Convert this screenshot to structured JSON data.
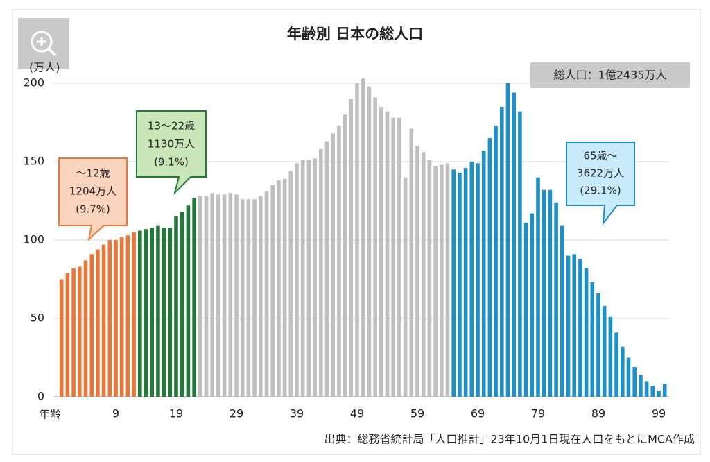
{
  "chart_data": {
    "type": "bar",
    "title": "年齢別 日本の総人口",
    "y_label": "(万人)",
    "x_label": "年齢",
    "total_label": "総人口：1億2435万人",
    "source": "出典：総務省統計局「人口推計」23年10月1日現在人口をもとにMCA作成",
    "categories": [
      null,
      null,
      null,
      null,
      null,
      null,
      null,
      null,
      null,
      "9",
      null,
      null,
      null,
      null,
      null,
      null,
      null,
      null,
      null,
      "19",
      null,
      null,
      null,
      null,
      null,
      null,
      null,
      null,
      null,
      "29",
      null,
      null,
      null,
      null,
      null,
      null,
      null,
      null,
      null,
      "39",
      null,
      null,
      null,
      null,
      null,
      null,
      null,
      null,
      null,
      "49",
      null,
      null,
      null,
      null,
      null,
      null,
      null,
      null,
      null,
      "59",
      null,
      null,
      null,
      null,
      null,
      null,
      null,
      null,
      null,
      "69",
      null,
      null,
      null,
      null,
      null,
      null,
      null,
      null,
      null,
      "79",
      null,
      null,
      null,
      null,
      null,
      null,
      null,
      null,
      null,
      "89",
      null,
      null,
      null,
      null,
      null,
      null,
      null,
      null,
      null,
      "99",
      null
    ],
    "series": [
      {
        "color": "#e8783a",
        "values": [
          75,
          79,
          82,
          83,
          87,
          91,
          94,
          97,
          100,
          100,
          102,
          103,
          105,
          null,
          null,
          null,
          null,
          null,
          null,
          null,
          null,
          null,
          null,
          null,
          null,
          null,
          null,
          null,
          null,
          null,
          null,
          null,
          null,
          null,
          null,
          null,
          null,
          null,
          null,
          null,
          null,
          null,
          null,
          null,
          null,
          null,
          null,
          null,
          null,
          null,
          null,
          null,
          null,
          null,
          null,
          null,
          null,
          null,
          null,
          null,
          null,
          null,
          null,
          null,
          null,
          null,
          null,
          null,
          null,
          null,
          null,
          null,
          null,
          null,
          null,
          null,
          null,
          null,
          null,
          null,
          null,
          null,
          null,
          null,
          null,
          null,
          null,
          null,
          null,
          null,
          null,
          null,
          null,
          null,
          null,
          null,
          null,
          null,
          null,
          null,
          null
        ]
      },
      {
        "color": "#23793a",
        "values": [
          null,
          null,
          null,
          null,
          null,
          null,
          null,
          null,
          null,
          null,
          null,
          null,
          null,
          106,
          107,
          108,
          109,
          108,
          108,
          115,
          118,
          122,
          127,
          null,
          null,
          null,
          null,
          null,
          null,
          null,
          null,
          null,
          null,
          null,
          null,
          null,
          null,
          null,
          null,
          null,
          null,
          null,
          null,
          null,
          null,
          null,
          null,
          null,
          null,
          null,
          null,
          null,
          null,
          null,
          null,
          null,
          null,
          null,
          null,
          null,
          null,
          null,
          null,
          null,
          null,
          null,
          null,
          null,
          null,
          null,
          null,
          null,
          null,
          null,
          null,
          null,
          null,
          null,
          null,
          null,
          null,
          null,
          null,
          null,
          null,
          null,
          null,
          null,
          null,
          null,
          null,
          null,
          null,
          null,
          null,
          null,
          null,
          null,
          null,
          null,
          null
        ]
      },
      {
        "color": "#bfbfbf",
        "values": [
          null,
          null,
          null,
          null,
          null,
          null,
          null,
          null,
          null,
          null,
          null,
          null,
          null,
          null,
          null,
          null,
          null,
          null,
          null,
          null,
          null,
          null,
          null,
          128,
          128,
          130,
          129,
          129,
          130,
          129,
          126,
          126,
          126,
          128,
          131,
          135,
          138,
          139,
          144,
          149,
          151,
          151,
          152,
          158,
          163,
          168,
          173,
          180,
          190,
          200,
          203,
          198,
          191,
          185,
          182,
          178,
          178,
          140,
          171,
          160,
          156,
          151,
          147,
          148,
          149,
          null,
          null,
          null,
          null,
          null,
          null,
          null,
          null,
          null,
          null,
          null,
          null,
          null,
          null,
          null,
          null,
          null,
          null,
          null,
          null,
          null,
          null,
          null,
          null,
          null,
          null,
          null,
          null,
          null,
          null,
          null,
          null,
          null,
          null,
          null,
          null
        ]
      },
      {
        "color": "#1f8fc8",
        "values": [
          null,
          null,
          null,
          null,
          null,
          null,
          null,
          null,
          null,
          null,
          null,
          null,
          null,
          null,
          null,
          null,
          null,
          null,
          null,
          null,
          null,
          null,
          null,
          null,
          null,
          null,
          null,
          null,
          null,
          null,
          null,
          null,
          null,
          null,
          null,
          null,
          null,
          null,
          null,
          null,
          null,
          null,
          null,
          null,
          null,
          null,
          null,
          null,
          null,
          null,
          null,
          null,
          null,
          null,
          null,
          null,
          null,
          null,
          null,
          null,
          null,
          null,
          null,
          null,
          null,
          145,
          143,
          146,
          150,
          149,
          157,
          165,
          173,
          185,
          200,
          194,
          182,
          111,
          117,
          140,
          132,
          132,
          124,
          109,
          90,
          91,
          88,
          82,
          73,
          66,
          58,
          51,
          41,
          32,
          25,
          19,
          14,
          10,
          7,
          4,
          8
        ]
      }
    ],
    "annotations": [
      {
        "lines": [
          "～12歳",
          "1204万人",
          "(9.7%)"
        ]
      },
      {
        "lines": [
          "13～22歳",
          "1130万人",
          "(9.1%)"
        ]
      },
      {
        "lines": [
          "65歳～",
          "3622万人",
          "(29.1%)"
        ]
      }
    ],
    "ylim": [
      0,
      200
    ],
    "yticks": [
      0,
      50,
      100,
      150,
      200
    ],
    "grid": true
  }
}
